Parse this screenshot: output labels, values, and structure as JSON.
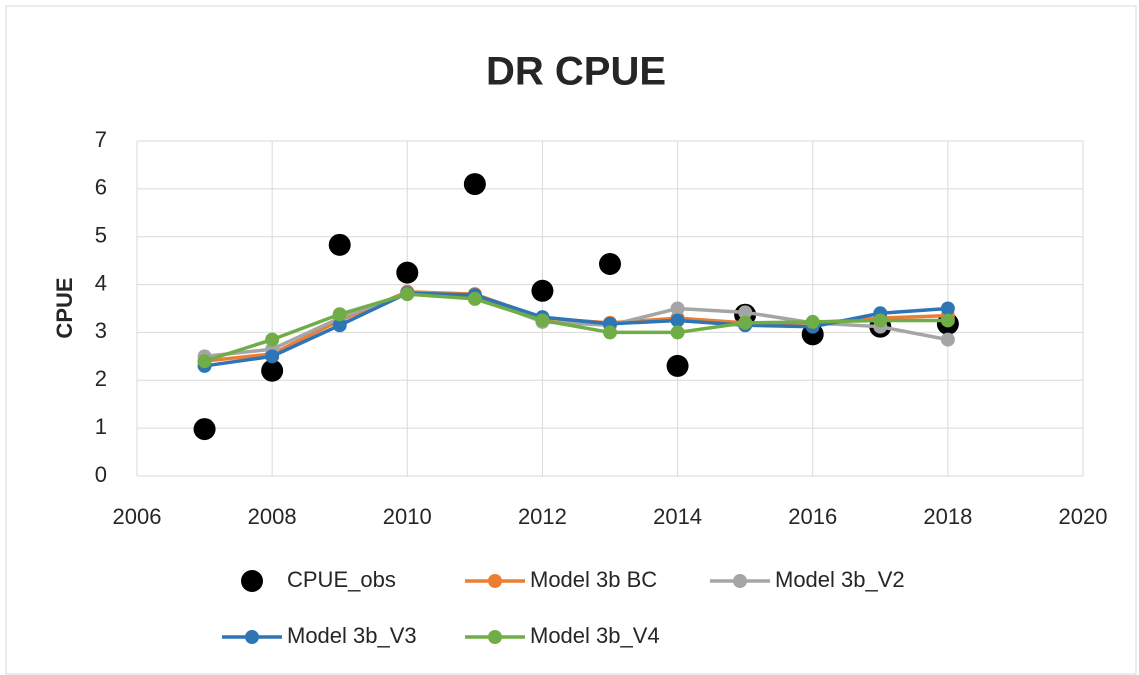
{
  "chart_data": {
    "type": "line",
    "title": "DR CPUE",
    "y_label": "CPUE",
    "x": [
      2007,
      2008,
      2009,
      2010,
      2011,
      2012,
      2013,
      2014,
      2015,
      2016,
      2017,
      2018
    ],
    "series": [
      {
        "name": "CPUE_obs",
        "type": "scatter",
        "color": "#000000",
        "values": [
          0.98,
          2.2,
          4.83,
          4.25,
          6.1,
          3.87,
          4.43,
          2.3,
          3.37,
          2.96,
          3.12,
          3.18
        ]
      },
      {
        "name": "Model 3b BC",
        "type": "line",
        "color": "#ed7d31",
        "values": [
          2.4,
          2.55,
          3.25,
          3.85,
          3.8,
          3.3,
          3.2,
          3.3,
          3.2,
          3.2,
          3.3,
          3.35
        ]
      },
      {
        "name": "Model 3b_V2",
        "type": "line",
        "color": "#a5a5a5",
        "values": [
          2.5,
          2.65,
          3.3,
          3.82,
          3.75,
          3.22,
          3.15,
          3.5,
          3.42,
          3.2,
          3.12,
          2.85
        ]
      },
      {
        "name": "Model 3b_V3",
        "type": "line",
        "color": "#2e75b6",
        "values": [
          2.3,
          2.5,
          3.15,
          3.82,
          3.78,
          3.32,
          3.18,
          3.25,
          3.15,
          3.12,
          3.4,
          3.5
        ]
      },
      {
        "name": "Model 3b_V4",
        "type": "line",
        "color": "#70ad47",
        "values": [
          2.4,
          2.85,
          3.38,
          3.8,
          3.7,
          3.25,
          3.0,
          3.0,
          3.2,
          3.22,
          3.25,
          3.25
        ]
      }
    ],
    "xlim": [
      2006,
      2020
    ],
    "xticks": [
      2006,
      2008,
      2010,
      2012,
      2014,
      2016,
      2018,
      2020
    ],
    "ylim": [
      0,
      7
    ],
    "yticks": [
      0,
      1,
      2,
      3,
      4,
      5,
      6,
      7
    ],
    "grid": true,
    "legend": "bottom"
  }
}
